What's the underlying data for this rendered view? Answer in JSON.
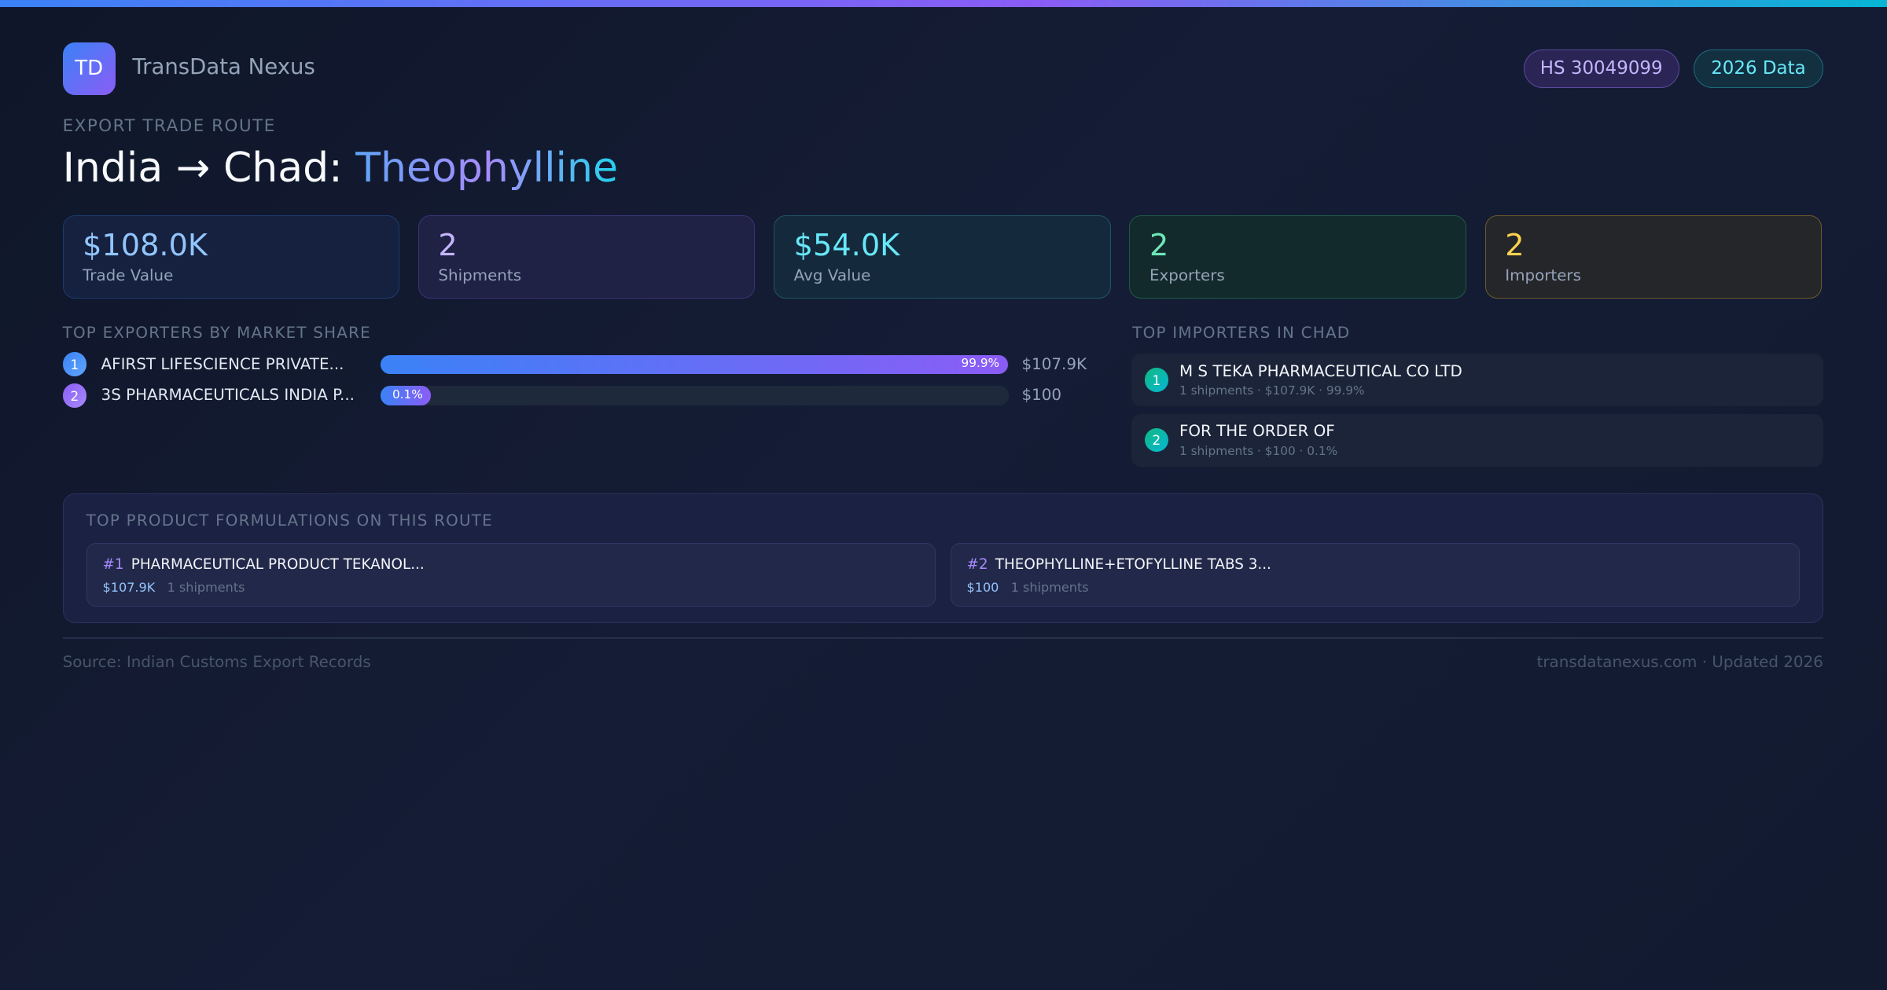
{
  "brand": {
    "logo": "TD",
    "name": "TransData Nexus"
  },
  "badges": {
    "hs": "HS 30049099",
    "year": "2026 Data"
  },
  "header": {
    "eyebrow": "EXPORT TRADE ROUTE",
    "title_prefix": "India → Chad: ",
    "title_highlight": "Theophylline"
  },
  "stats": [
    {
      "value": "$108.0K",
      "label": "Trade Value",
      "color": "#93c5fd"
    },
    {
      "value": "2",
      "label": "Shipments",
      "color": "#c4b5fd"
    },
    {
      "value": "$54.0K",
      "label": "Avg Value",
      "color": "#67e8f9"
    },
    {
      "value": "2",
      "label": "Exporters",
      "color": "#6ee7b7"
    },
    {
      "value": "2",
      "label": "Importers",
      "color": "#fcd34d"
    }
  ],
  "exporters": {
    "title": "TOP EXPORTERS BY MARKET SHARE",
    "items": [
      {
        "rank": "1",
        "name": "AFIRST LIFESCIENCE PRIVATE...",
        "share": 99.9,
        "share_label": "99.9%",
        "value": "$107.9K"
      },
      {
        "rank": "2",
        "name": "3S PHARMACEUTICALS INDIA P...",
        "share": 0.1,
        "share_label": "0.1%",
        "value": "$100"
      }
    ]
  },
  "importers": {
    "title": "TOP IMPORTERS IN CHAD",
    "items": [
      {
        "rank": "1",
        "name": "M S TEKA PHARMACEUTICAL CO LTD",
        "meta": "1 shipments · $107.9K · 99.9%"
      },
      {
        "rank": "2",
        "name": "FOR THE ORDER OF",
        "meta": "1 shipments · $100 · 0.1%"
      }
    ]
  },
  "formulations": {
    "title": "TOP PRODUCT FORMULATIONS ON THIS ROUTE",
    "items": [
      {
        "rank": "#1",
        "name": "PHARMACEUTICAL PRODUCT TEKANOL...",
        "value": "$107.9K",
        "shipments": "1 shipments"
      },
      {
        "rank": "#2",
        "name": "THEOPHYLLINE+ETOFYLLINE TABS 3...",
        "value": "$100",
        "shipments": "1 shipments"
      }
    ]
  },
  "footer": {
    "source": "Source: Indian Customs Export Records",
    "site": "transdatanexus.com · Updated 2026"
  }
}
